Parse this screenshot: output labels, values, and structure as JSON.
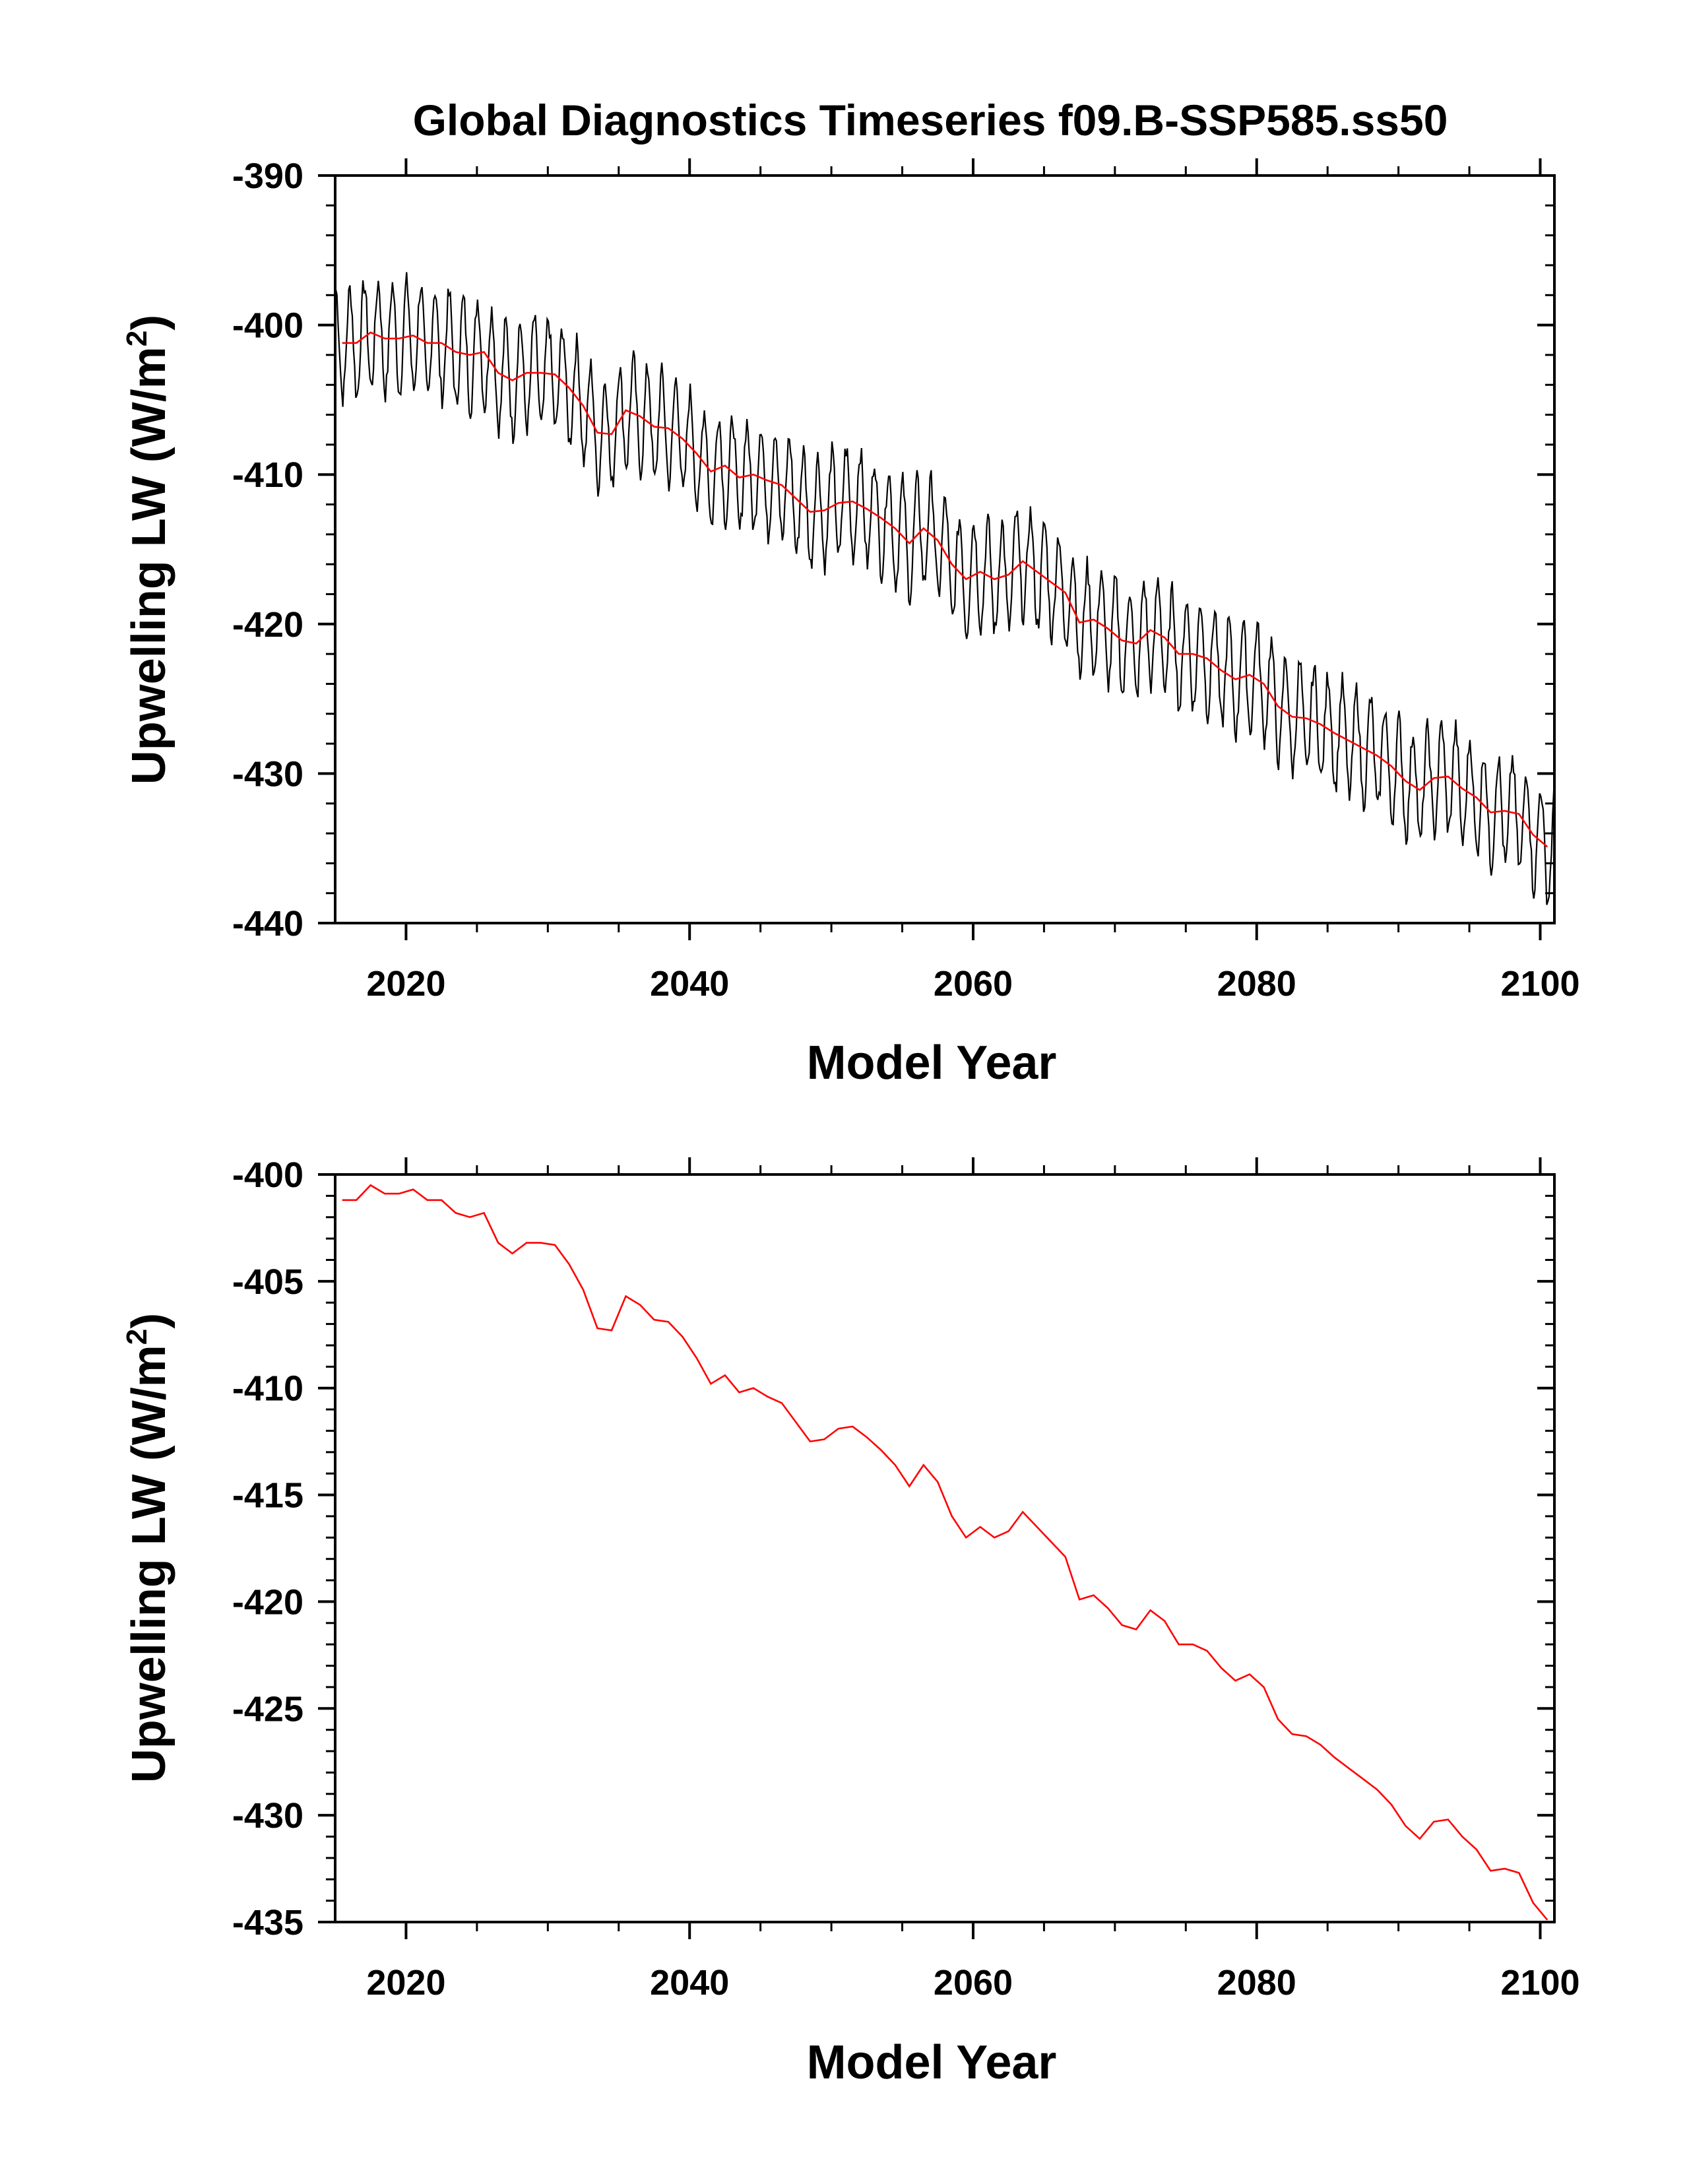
{
  "title": "Global Diagnostics Timeseries f09.B-SSP585.ss50",
  "colors": {
    "monthly": "#000000",
    "annual": "#ff0000",
    "axes": "#000000"
  },
  "chart_data": [
    {
      "type": "line",
      "title": "Global Diagnostics Timeseries f09.B-SSP585.ss50",
      "xlabel": "Model Year",
      "ylabel_main": "Upwelling LW (W/m",
      "ylabel_sup": "2",
      "ylabel_close": ")",
      "xlim": [
        2015,
        2101
      ],
      "ylim": [
        -440,
        -390
      ],
      "xticks": [
        2020,
        2040,
        2060,
        2080,
        2100
      ],
      "xtick_labels": [
        "2020",
        "2040",
        "2060",
        "2080",
        "2100"
      ],
      "yticks": [
        -440,
        -430,
        -420,
        -410,
        -400,
        -390
      ],
      "ytick_labels": [
        "-440",
        "-430",
        "-420",
        "-410",
        "-400",
        "-390"
      ],
      "series": [
        {
          "name": "monthly",
          "color": "#000000",
          "seasonal_amplitude": 3.6,
          "start_year": 2015,
          "end_year": 2101,
          "note": "monthly cycle around annual mean"
        },
        {
          "name": "annual",
          "color": "#ff0000",
          "ref": "annual_means"
        }
      ]
    },
    {
      "type": "line",
      "xlabel": "Model Year",
      "ylabel_main": "Upwelling LW (W/m",
      "ylabel_sup": "2",
      "ylabel_close": ")",
      "xlim": [
        2015,
        2101
      ],
      "ylim": [
        -435,
        -400
      ],
      "xticks": [
        2020,
        2040,
        2060,
        2080,
        2100
      ],
      "xtick_labels": [
        "2020",
        "2040",
        "2060",
        "2080",
        "2100"
      ],
      "yticks": [
        -435,
        -430,
        -425,
        -420,
        -415,
        -410,
        -405,
        -400
      ],
      "ytick_labels": [
        "-435",
        "-430",
        "-425",
        "-420",
        "-415",
        "-410",
        "-405",
        "-400"
      ],
      "series": [
        {
          "name": "annual",
          "color": "#ff0000",
          "ref": "annual_means"
        }
      ]
    }
  ],
  "annual_means": {
    "x": [
      2015.5,
      2016.5,
      2017.5,
      2018.5,
      2019.5,
      2020.5,
      2021.5,
      2022.5,
      2023.5,
      2024.5,
      2025.5,
      2026.5,
      2027.5,
      2028.5,
      2029.5,
      2030.5,
      2031.5,
      2032.5,
      2033.5,
      2034.5,
      2035.5,
      2036.5,
      2037.5,
      2038.5,
      2039.5,
      2040.5,
      2041.5,
      2042.5,
      2043.5,
      2044.5,
      2045.5,
      2046.5,
      2047.5,
      2048.5,
      2049.5,
      2050.5,
      2051.5,
      2052.5,
      2053.5,
      2054.5,
      2055.5,
      2056.5,
      2057.5,
      2058.5,
      2059.5,
      2060.5,
      2061.5,
      2062.5,
      2063.5,
      2064.5,
      2065.5,
      2066.5,
      2067.5,
      2068.5,
      2069.5,
      2070.5,
      2071.5,
      2072.5,
      2073.5,
      2074.5,
      2075.5,
      2076.5,
      2077.5,
      2078.5,
      2079.5,
      2080.5,
      2081.5,
      2082.5,
      2083.5,
      2084.5,
      2085.5,
      2086.5,
      2087.5,
      2088.5,
      2089.5,
      2090.5,
      2091.5,
      2092.5,
      2093.5,
      2094.5,
      2095.5,
      2096.5,
      2097.5,
      2098.5,
      2099.5,
      2100.5
    ],
    "y": [
      -401.2,
      -401.2,
      -400.5,
      -400.9,
      -400.9,
      -400.7,
      -401.2,
      -401.2,
      -401.8,
      -402.0,
      -401.8,
      -403.2,
      -403.7,
      -403.2,
      -403.2,
      -403.3,
      -404.2,
      -405.4,
      -407.2,
      -407.3,
      -405.7,
      -406.1,
      -406.8,
      -406.9,
      -407.6,
      -408.6,
      -409.8,
      -409.4,
      -410.2,
      -410.0,
      -410.4,
      -410.7,
      -411.6,
      -412.5,
      -412.4,
      -411.9,
      -411.8,
      -412.3,
      -412.9,
      -413.6,
      -414.6,
      -413.6,
      -414.4,
      -416.0,
      -417.0,
      -416.5,
      -417.0,
      -416.7,
      -415.8,
      -416.5,
      -417.2,
      -417.9,
      -419.9,
      -419.7,
      -420.3,
      -421.1,
      -421.3,
      -420.4,
      -420.9,
      -422.0,
      -422.0,
      -422.3,
      -423.1,
      -423.7,
      -423.4,
      -424.0,
      -425.5,
      -426.2,
      -426.3,
      -426.7,
      -427.3,
      -427.8,
      -428.3,
      -428.8,
      -429.5,
      -430.5,
      -431.1,
      -430.3,
      -430.2,
      -431.0,
      -431.6,
      -432.6,
      -432.5,
      -432.7,
      -434.1,
      -434.9
    ]
  }
}
